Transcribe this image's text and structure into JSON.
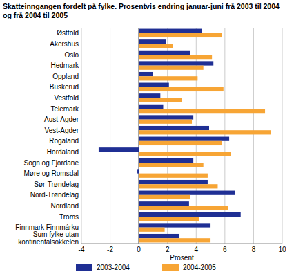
{
  "chart_data": {
    "type": "bar",
    "orientation": "horizontal",
    "title": "Skatteinngangen fordelt på fylke. Prosentvis endring januar-juni frå 2003 til 2004 og frå 2004 til 2005",
    "x_label": "Prosent",
    "categories": [
      "Østfold",
      "Akershus",
      "Oslo",
      "Hedmark",
      "Oppland",
      "Buskerud",
      "Vestfold",
      "Telemark",
      "Aust-Agder",
      "Vest-Agder",
      "Rogaland",
      "Hordaland",
      "Sogn og Fjordane",
      "Møre og Romsdal",
      "Sør-Trøndelag",
      "Nord-Trøndelag",
      "Nordland",
      "Troms",
      "Finnmark Finnmárku",
      "Sum fylke utan kontinentalsokkelen"
    ],
    "series": [
      {
        "name": "2003-2004",
        "color": "#1f2f94",
        "values": [
          4.4,
          1.9,
          3.6,
          5.2,
          1.0,
          2.1,
          1.5,
          1.7,
          3.8,
          4.9,
          6.3,
          -2.8,
          3.8,
          -0.1,
          4.8,
          6.7,
          3.5,
          7.1,
          5.0,
          2.8
        ]
      },
      {
        "name": "2004-2005",
        "color": "#f7a535",
        "values": [
          5.8,
          2.35,
          5.1,
          4.5,
          4.1,
          5.9,
          3.0,
          8.8,
          3.7,
          9.2,
          5.8,
          6.4,
          4.5,
          4.8,
          5.5,
          3.6,
          6.2,
          4.2,
          1.8,
          5.0
        ]
      }
    ],
    "xlim": [
      -4,
      10
    ],
    "xticks": [
      -4,
      -2,
      0,
      2,
      4,
      6,
      8,
      10
    ],
    "grid": true,
    "legend": "bottom"
  }
}
